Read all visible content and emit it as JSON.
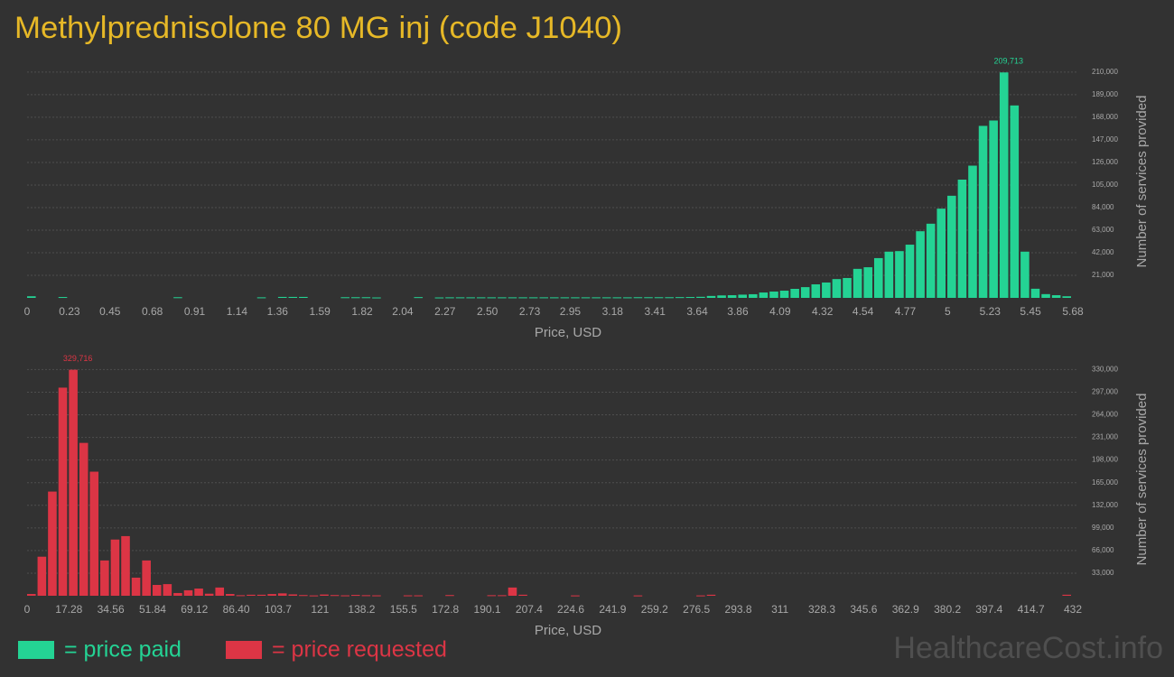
{
  "title": "Methylprednisolone 80 MG inj (code J1040)",
  "watermark": "HealthcareCost.info",
  "chart_data": [
    {
      "type": "histogram",
      "name": "= price paid",
      "color": "#24d394",
      "xlabel": "Price, USD",
      "ylabel": "Number of services provided",
      "grid": true,
      "xlim": [
        0,
        5.68
      ],
      "ylim": [
        0,
        220000
      ],
      "xticks": [
        0,
        0.23,
        0.45,
        0.68,
        0.91,
        1.14,
        1.36,
        1.59,
        1.82,
        2.04,
        2.27,
        {
          "value": 2.5,
          "label": "2.50"
        },
        2.73,
        2.95,
        3.18,
        3.41,
        3.64,
        3.86,
        4.09,
        4.32,
        4.54,
        4.77,
        5,
        5.23,
        5.45,
        5.68
      ],
      "yticks": [
        {
          "value": 21000,
          "label": "21,000"
        },
        {
          "value": 42000,
          "label": "42,000"
        },
        {
          "value": 63000,
          "label": "63,000"
        },
        {
          "value": 84000,
          "label": "84,000"
        },
        {
          "value": 105000,
          "label": "105,000"
        },
        {
          "value": 126000,
          "label": "126,000"
        },
        {
          "value": 147000,
          "label": "147,000"
        },
        {
          "value": 168000,
          "label": "168,000"
        },
        {
          "value": 189000,
          "label": "189,000"
        },
        {
          "value": 210000,
          "label": "210,000"
        }
      ],
      "bins": [
        0,
        0.0568,
        0.1136,
        0.1704,
        0.2272,
        0.284,
        0.3408,
        0.3976,
        0.4544,
        0.5112,
        0.568,
        0.6248,
        0.6816,
        0.7384,
        0.7952,
        0.852,
        0.9088,
        0.9656,
        1.0224,
        1.0792,
        1.136,
        1.1928,
        1.2496,
        1.3064,
        1.3632,
        1.42,
        1.4768,
        1.5336,
        1.5904,
        1.6472,
        1.704,
        1.7608,
        1.8176,
        1.8744,
        1.9312,
        1.988,
        2.0448,
        2.1016,
        2.1584,
        2.2152,
        2.272,
        2.3288,
        2.3856,
        2.4424,
        2.4992,
        2.556,
        2.6128,
        2.6696,
        2.7264,
        2.7832,
        2.84,
        2.8968,
        2.9536,
        3.0104,
        3.0672,
        3.124,
        3.1808,
        3.2376,
        3.2944,
        3.3512,
        3.408,
        3.4648,
        3.5216,
        3.5784,
        3.6352,
        3.692,
        3.7488,
        3.8056,
        3.8624,
        3.9192,
        3.976,
        4.0328,
        4.0896,
        4.1464,
        4.2032,
        4.26,
        4.3168,
        4.3736,
        4.4304,
        4.4872,
        4.544,
        4.6008,
        4.6576,
        4.7144,
        4.7712,
        4.828,
        4.8848,
        4.9416,
        4.9984,
        5.0552,
        5.112,
        5.1688,
        5.2256,
        5.2824,
        5.3392,
        5.396,
        5.4528,
        5.5096,
        5.5664,
        5.6232,
        5.68
      ],
      "values": [
        1500,
        0,
        0,
        800,
        0,
        0,
        0,
        0,
        0,
        0,
        0,
        0,
        0,
        0,
        600,
        0,
        0,
        0,
        0,
        0,
        0,
        0,
        500,
        0,
        900,
        900,
        900,
        0,
        0,
        0,
        600,
        600,
        600,
        400,
        0,
        0,
        0,
        700,
        0,
        400,
        500,
        500,
        500,
        500,
        500,
        500,
        500,
        500,
        500,
        500,
        500,
        500,
        500,
        500,
        500,
        500,
        500,
        500,
        600,
        600,
        600,
        600,
        700,
        800,
        1000,
        1800,
        2300,
        2500,
        3000,
        3400,
        5000,
        5900,
        6700,
        8400,
        10000,
        12600,
        14300,
        17500,
        18500,
        27000,
        28500,
        37000,
        43000,
        43500,
        49500,
        62000,
        69000,
        83000,
        95000,
        110000,
        123000,
        160000,
        165000,
        209713,
        179000,
        43000,
        8500,
        3500,
        2500,
        1500
      ],
      "value_labels": [
        null,
        null,
        null,
        null,
        null,
        null,
        null,
        null,
        null,
        null,
        null,
        null,
        null,
        null,
        null,
        null,
        null,
        null,
        null,
        null,
        null,
        null,
        null,
        null,
        null,
        null,
        null,
        null,
        null,
        null,
        null,
        null,
        null,
        null,
        null,
        null,
        null,
        null,
        null,
        null,
        null,
        null,
        null,
        null,
        null,
        null,
        null,
        null,
        null,
        null,
        null,
        null,
        null,
        null,
        null,
        null,
        null,
        null,
        null,
        null,
        null,
        null,
        null,
        null,
        null,
        null,
        null,
        null,
        null,
        null,
        null,
        null,
        null,
        null,
        null,
        null,
        null,
        null,
        null,
        null,
        null,
        null,
        null,
        null,
        null,
        null,
        null,
        null,
        null,
        null,
        null,
        null,
        null,
        "209,713",
        null,
        null,
        null,
        null,
        null,
        null
      ]
    },
    {
      "type": "histogram",
      "name": "= price requested",
      "color": "#dc3545",
      "xlabel": "Price, USD",
      "ylabel": "Number of services provided",
      "grid": true,
      "xlim": [
        0,
        432
      ],
      "ylim": [
        0,
        345000
      ],
      "xticks": [
        0,
        17.28,
        34.56,
        51.84,
        69.12,
        {
          "value": 86.4,
          "label": "86.40"
        },
        103.7,
        121,
        138.2,
        155.5,
        172.8,
        190.1,
        207.4,
        224.6,
        241.9,
        259.2,
        276.5,
        293.8,
        311,
        328.3,
        345.6,
        362.9,
        380.2,
        397.4,
        414.7,
        432
      ],
      "yticks": [
        {
          "value": 33000,
          "label": "33,000"
        },
        {
          "value": 66000,
          "label": "66,000"
        },
        {
          "value": 99000,
          "label": "99,000"
        },
        {
          "value": 132000,
          "label": "132,000"
        },
        {
          "value": 165000,
          "label": "165,000"
        },
        {
          "value": 198000,
          "label": "198,000"
        },
        {
          "value": 231000,
          "label": "231,000"
        },
        {
          "value": 264000,
          "label": "264,000"
        },
        {
          "value": 297000,
          "label": "297,000"
        },
        {
          "value": 330000,
          "label": "330,000"
        }
      ],
      "bins": [
        0,
        4.32,
        8.64,
        12.96,
        17.28,
        21.6,
        25.92,
        30.24,
        34.56,
        38.88,
        43.2,
        47.52,
        51.84,
        56.16,
        60.48,
        64.8,
        69.12,
        73.44,
        77.76,
        82.08,
        86.4,
        90.72,
        95.04,
        99.36,
        103.68,
        108,
        112.32,
        116.64,
        120.96,
        125.28,
        129.6,
        133.92,
        138.24,
        142.56,
        146.88,
        151.2,
        155.52,
        159.84,
        164.16,
        168.48,
        172.8,
        177.12,
        181.44,
        185.76,
        190.08,
        194.4,
        198.72,
        203.04,
        207.36,
        211.68,
        216,
        220.32,
        224.64,
        228.96,
        233.28,
        237.6,
        241.92,
        246.24,
        250.56,
        254.88,
        259.2,
        263.52,
        267.84,
        272.16,
        276.48,
        280.8,
        285.12,
        289.44,
        293.76,
        298.08,
        302.4,
        306.72,
        311.04,
        315.36,
        319.68,
        324,
        328.32,
        332.64,
        336.96,
        341.28,
        345.6,
        349.92,
        354.24,
        358.56,
        362.88,
        367.2,
        371.52,
        375.84,
        380.16,
        384.48,
        388.8,
        393.12,
        397.44,
        401.76,
        406.08,
        410.4,
        414.72,
        419.04,
        423.36,
        427.68,
        432
      ],
      "values": [
        2600,
        57000,
        152000,
        303600,
        329716,
        223000,
        181000,
        51500,
        82000,
        87000,
        26400,
        51500,
        15800,
        17000,
        4000,
        8000,
        10500,
        3000,
        12000,
        2600,
        800,
        1500,
        1500,
        2500,
        3500,
        2000,
        1000,
        500,
        1800,
        1000,
        600,
        1200,
        800,
        600,
        0,
        0,
        600,
        600,
        0,
        0,
        1000,
        0,
        0,
        0,
        800,
        800,
        12000,
        1500,
        0,
        0,
        0,
        0,
        500,
        0,
        0,
        0,
        0,
        0,
        500,
        0,
        0,
        0,
        0,
        0,
        500,
        1500,
        0,
        0,
        0,
        0,
        0,
        0,
        0,
        0,
        0,
        0,
        0,
        0,
        0,
        0,
        0,
        0,
        0,
        0,
        0,
        0,
        0,
        0,
        0,
        0,
        0,
        0,
        0,
        0,
        0,
        0,
        0,
        0,
        0,
        1500
      ],
      "value_labels": [
        null,
        null,
        null,
        null,
        "329,716",
        null,
        null,
        null,
        null,
        null,
        null,
        null,
        null,
        null,
        null,
        null,
        null,
        null,
        null,
        null,
        null,
        null,
        null,
        null,
        null,
        null,
        null,
        null,
        null,
        null,
        null,
        null,
        null,
        null,
        null,
        null,
        null,
        null,
        null,
        null,
        null,
        null,
        null,
        null,
        null,
        null,
        null,
        null,
        null,
        null,
        null,
        null,
        null,
        null,
        null,
        null,
        null,
        null,
        null,
        null,
        null,
        null,
        null,
        null,
        null,
        null,
        null,
        null,
        null,
        null,
        null,
        null,
        null,
        null,
        null,
        null,
        null,
        null,
        null,
        null,
        null,
        null,
        null,
        null,
        null,
        null,
        null,
        null,
        null,
        null,
        null,
        null,
        null,
        null,
        null,
        null,
        null,
        null,
        null,
        null
      ]
    }
  ]
}
